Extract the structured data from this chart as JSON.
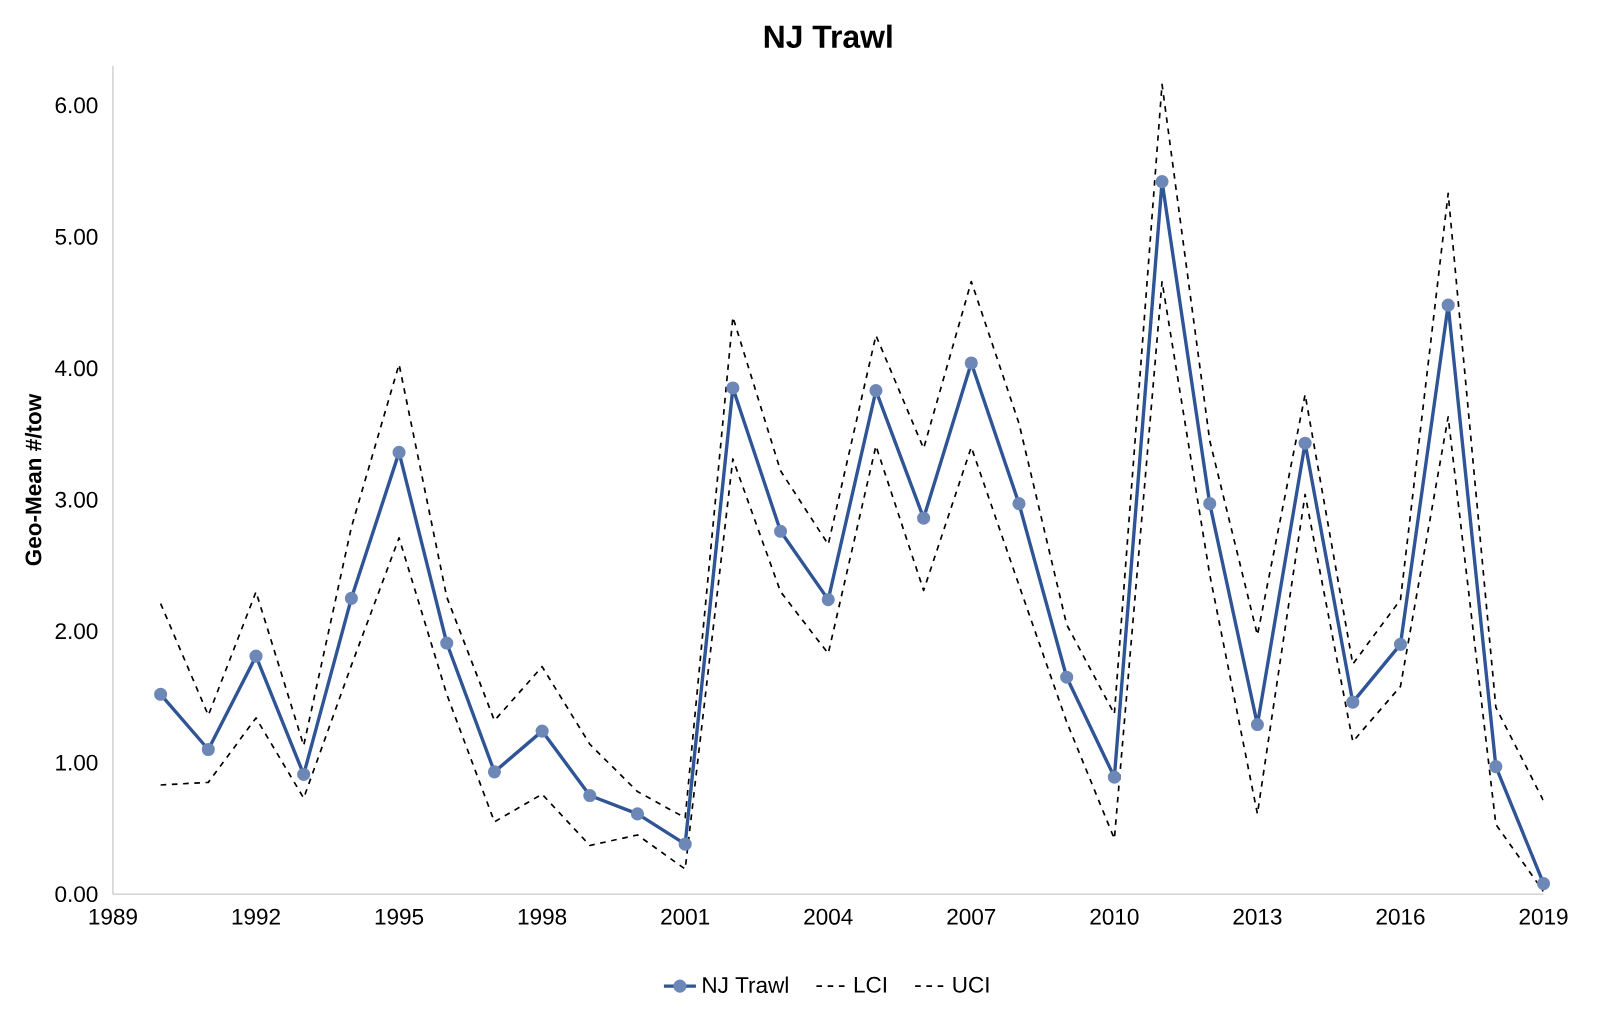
{
  "chart_data": {
    "type": "line",
    "title": "NJ Trawl",
    "ylabel": "Geo-Mean #/tow",
    "x": [
      1990,
      1991,
      1992,
      1993,
      1994,
      1995,
      1996,
      1997,
      1998,
      1999,
      2000,
      2001,
      2002,
      2003,
      2004,
      2005,
      2006,
      2007,
      2008,
      2009,
      2010,
      2011,
      2012,
      2013,
      2014,
      2015,
      2016,
      2017,
      2018,
      2019
    ],
    "series": [
      {
        "name": "NJ Trawl",
        "color": "#2f5597",
        "marker": "circle",
        "line_style": "solid",
        "values": [
          1.52,
          1.1,
          1.81,
          0.91,
          2.25,
          3.36,
          1.91,
          0.93,
          1.24,
          0.75,
          0.61,
          0.38,
          3.85,
          2.76,
          2.24,
          3.83,
          2.86,
          4.04,
          2.97,
          1.65,
          0.89,
          5.42,
          2.97,
          1.29,
          3.43,
          1.46,
          1.9,
          4.48,
          0.97,
          0.08
        ]
      },
      {
        "name": "LCI",
        "color": "#000000",
        "marker": "none",
        "line_style": "dashed",
        "values": [
          0.83,
          0.85,
          1.34,
          0.73,
          1.74,
          2.71,
          1.52,
          0.55,
          0.76,
          0.37,
          0.45,
          0.19,
          3.31,
          2.3,
          1.83,
          3.41,
          2.31,
          3.4,
          2.35,
          1.31,
          0.42,
          4.66,
          2.43,
          0.61,
          3.04,
          1.16,
          1.58,
          3.63,
          0.53,
          0.02
        ]
      },
      {
        "name": "UCI",
        "color": "#000000",
        "marker": "none",
        "line_style": "dashed",
        "values": [
          2.21,
          1.36,
          2.3,
          1.13,
          2.79,
          4.03,
          2.26,
          1.32,
          1.73,
          1.14,
          0.78,
          0.58,
          4.39,
          3.22,
          2.66,
          4.25,
          3.39,
          4.66,
          3.58,
          2.05,
          1.37,
          6.16,
          3.45,
          1.97,
          3.8,
          1.75,
          2.24,
          5.33,
          1.42,
          0.71
        ]
      }
    ],
    "xlim": [
      1989,
      2019
    ],
    "xticks": [
      1989,
      1992,
      1995,
      1998,
      2001,
      2004,
      2007,
      2010,
      2013,
      2016,
      2019
    ],
    "ylim": [
      0,
      6.3
    ],
    "yticks": [
      {
        "value": 0,
        "label": "0.00"
      },
      {
        "value": 1,
        "label": "1.00"
      },
      {
        "value": 2,
        "label": "2.00"
      },
      {
        "value": 3,
        "label": "3.00"
      },
      {
        "value": 4,
        "label": "4.00"
      },
      {
        "value": 5,
        "label": "5.00"
      },
      {
        "value": 6,
        "label": "6.00"
      }
    ],
    "grid": false,
    "legend": "bottom"
  }
}
